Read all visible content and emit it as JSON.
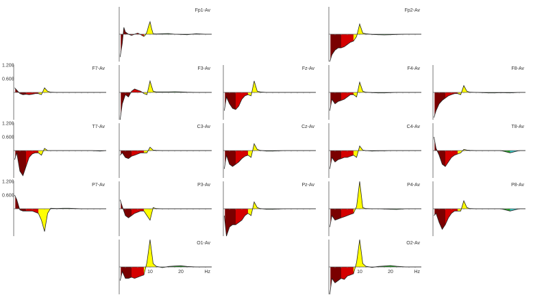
{
  "chart_data": {
    "type": "area",
    "x_unit_label": "Hz",
    "x_tick_labels": [
      "10",
      "20"
    ],
    "xlim": [
      0,
      30
    ],
    "ylim": [
      -1.2,
      1.2
    ],
    "y_tick_labels": [
      "1.200",
      "0.600"
    ],
    "band_colors": {
      "dark": "#7a0000",
      "red": "#d40000",
      "yellow": "#ffff00",
      "green": "#22aa22",
      "cyan": "#33cccc"
    },
    "bands": [
      {
        "color": "dark",
        "range": [
          0.5,
          4
        ]
      },
      {
        "color": "red",
        "range": [
          4,
          8
        ]
      },
      {
        "color": "yellow",
        "range": [
          8,
          12
        ]
      },
      {
        "color": "green",
        "range": [
          12,
          25
        ]
      },
      {
        "color": "cyan",
        "range": [
          25,
          30
        ]
      }
    ],
    "panels": [
      {
        "name": "Fp1-Av",
        "x": [
          0.3,
          1,
          1.5,
          2,
          3,
          4,
          5,
          6,
          7,
          8,
          8.5,
          9,
          9.5,
          10,
          10.5,
          11,
          12,
          14,
          16,
          18,
          20,
          22,
          25,
          28,
          30
        ],
        "y": [
          -1.0,
          -0.4,
          0.3,
          0.1,
          0,
          -0.05,
          0,
          0.05,
          -0.02,
          -0.1,
          -0.03,
          0.1,
          0.35,
          0.55,
          0.25,
          0.02,
          0.01,
          0.02,
          0.03,
          0,
          -0.01,
          -0.02,
          0.02,
          0,
          0
        ]
      },
      {
        "name": "Fp2-Av",
        "x": [
          0.3,
          1,
          2,
          3,
          4,
          5,
          6,
          7,
          8,
          9,
          10,
          11,
          12,
          14,
          16,
          18,
          20,
          22,
          25,
          28,
          30
        ],
        "y": [
          -1.2,
          -0.9,
          -0.7,
          -0.6,
          -0.6,
          -0.55,
          -0.45,
          -0.35,
          -0.3,
          -0.1,
          0.45,
          0.05,
          0.02,
          -0.01,
          -0.02,
          -0.03,
          -0.02,
          -0.01,
          0,
          0,
          0
        ]
      },
      {
        "name": "F7-Av",
        "x": [
          0.3,
          1,
          2,
          3,
          4,
          5,
          6,
          7,
          8,
          9,
          10,
          11,
          12,
          14,
          16,
          18,
          20,
          22,
          25,
          28,
          30
        ],
        "y": [
          0.2,
          0.1,
          -0.05,
          -0.1,
          -0.08,
          -0.1,
          -0.08,
          -0.05,
          -0.05,
          -0.1,
          0.2,
          0.05,
          0.01,
          0,
          0,
          0,
          0,
          0,
          0,
          0,
          0
        ]
      },
      {
        "name": "F3-Av",
        "x": [
          0.3,
          1,
          2,
          3,
          4,
          5,
          6,
          7,
          8,
          9,
          10,
          11,
          12,
          14,
          16,
          18,
          20,
          22,
          25,
          28,
          30
        ],
        "y": [
          -1.2,
          -0.5,
          -0.1,
          -0.2,
          0.05,
          0.15,
          0.1,
          0.05,
          -0.05,
          -0.1,
          0.5,
          0.05,
          0.02,
          0.02,
          0.02,
          0.03,
          0.02,
          0.01,
          0,
          0,
          0
        ]
      },
      {
        "name": "Fz-Av",
        "x": [
          0.3,
          1,
          2,
          3,
          4,
          5,
          6,
          7,
          8,
          9,
          10,
          11,
          12,
          14,
          16,
          18,
          20,
          22,
          25,
          28,
          30
        ],
        "y": [
          -0.8,
          -0.2,
          -0.5,
          -0.7,
          -0.75,
          -0.6,
          -0.3,
          -0.15,
          -0.1,
          -0.15,
          0.5,
          0.05,
          0.02,
          0,
          0,
          0,
          0,
          0,
          0,
          0,
          0
        ]
      },
      {
        "name": "F4-Av",
        "x": [
          0.3,
          1,
          2,
          3,
          4,
          5,
          6,
          7,
          8,
          9,
          10,
          11,
          12,
          14,
          16,
          18,
          20,
          22,
          25,
          28,
          30
        ],
        "y": [
          -0.8,
          -0.3,
          -0.5,
          -0.4,
          -0.35,
          -0.3,
          -0.2,
          -0.1,
          -0.1,
          -0.2,
          0.45,
          0.05,
          0.01,
          -0.01,
          -0.02,
          -0.02,
          -0.01,
          0,
          0,
          0,
          0
        ]
      },
      {
        "name": "F8-Av",
        "x": [
          0.3,
          1,
          2,
          3,
          4,
          5,
          6,
          7,
          8,
          9,
          10,
          11,
          12,
          14,
          16,
          18,
          20,
          22,
          25,
          28,
          30
        ],
        "y": [
          -1.1,
          -0.8,
          -0.5,
          -0.35,
          -0.25,
          -0.15,
          -0.1,
          -0.05,
          -0.05,
          -0.1,
          0.3,
          0.05,
          0.01,
          0,
          -0.01,
          -0.02,
          -0.02,
          -0.01,
          -0.02,
          0,
          0
        ]
      },
      {
        "name": "T7-Av",
        "x": [
          0.3,
          1,
          2,
          3,
          4,
          5,
          6,
          7,
          8,
          9,
          10,
          11,
          12,
          14,
          16,
          18,
          20,
          22,
          25,
          28,
          30
        ],
        "y": [
          -0.4,
          -0.1,
          -0.9,
          -1.1,
          -0.7,
          -0.3,
          -0.15,
          -0.1,
          -0.1,
          -0.2,
          0.1,
          0,
          0,
          0,
          0,
          0,
          0,
          0,
          0,
          -0.02,
          0
        ]
      },
      {
        "name": "C3-Av",
        "x": [
          0.3,
          1,
          2,
          3,
          4,
          5,
          6,
          7,
          8,
          9,
          10,
          11,
          12,
          14,
          16,
          18,
          20,
          22,
          25,
          28,
          30
        ],
        "y": [
          -0.2,
          -0.1,
          -0.3,
          -0.35,
          -0.25,
          -0.2,
          -0.15,
          -0.1,
          -0.1,
          -0.1,
          0.15,
          0.02,
          0.01,
          0,
          0,
          0,
          0,
          0,
          0,
          0,
          0
        ]
      },
      {
        "name": "Cz-Av",
        "x": [
          0.3,
          1,
          2,
          3,
          4,
          5,
          6,
          7,
          8,
          9,
          10,
          11,
          12,
          14,
          16,
          18,
          20,
          22,
          25,
          28,
          30
        ],
        "y": [
          -0.8,
          -0.2,
          -0.6,
          -0.7,
          -0.6,
          -0.5,
          -0.35,
          -0.25,
          -0.2,
          -0.3,
          0.3,
          0.05,
          0.01,
          -0.02,
          -0.02,
          -0.01,
          0,
          0,
          0,
          0,
          0
        ]
      },
      {
        "name": "C4-Av",
        "x": [
          0.3,
          1,
          2,
          3,
          4,
          5,
          6,
          7,
          8,
          9,
          10,
          11,
          12,
          14,
          16,
          18,
          20,
          22,
          25,
          28,
          30
        ],
        "y": [
          -0.8,
          -0.3,
          -0.5,
          -0.4,
          -0.35,
          -0.3,
          -0.3,
          -0.25,
          -0.2,
          -0.3,
          0.2,
          0.02,
          0,
          -0.02,
          -0.01,
          -0.01,
          0,
          0,
          0,
          0,
          0
        ]
      },
      {
        "name": "T8-Av",
        "x": [
          0.3,
          1,
          2,
          3,
          4,
          5,
          6,
          7,
          8,
          9,
          10,
          11,
          12,
          14,
          16,
          18,
          20,
          22,
          25,
          28,
          30
        ],
        "y": [
          0.6,
          0.1,
          -0.2,
          -0.6,
          -0.7,
          -0.5,
          -0.3,
          -0.2,
          -0.15,
          -0.1,
          0.05,
          0.02,
          0.01,
          0,
          0,
          0,
          0,
          0,
          -0.1,
          0,
          0
        ]
      },
      {
        "name": "P7-Av",
        "x": [
          0.3,
          1,
          2,
          3,
          4,
          5,
          6,
          7,
          8,
          9,
          10,
          11,
          12,
          14,
          16,
          18,
          20,
          22,
          25,
          28,
          30
        ],
        "y": [
          0.6,
          0.4,
          -0.05,
          -0.1,
          -0.1,
          -0.1,
          -0.1,
          -0.15,
          -0.2,
          -0.5,
          -1.0,
          -0.2,
          0.02,
          0.01,
          0.02,
          0.02,
          0.01,
          0,
          0,
          0,
          0
        ]
      },
      {
        "name": "P3-Av",
        "x": [
          0.3,
          1,
          2,
          3,
          4,
          5,
          6,
          7,
          8,
          9,
          10,
          11,
          12,
          14,
          16,
          18,
          20,
          22,
          25,
          28,
          30
        ],
        "y": [
          0.4,
          0.1,
          -0.3,
          -0.4,
          -0.3,
          -0.2,
          -0.15,
          -0.1,
          -0.1,
          -0.3,
          -0.5,
          0.05,
          0.01,
          0,
          0,
          0,
          0,
          0,
          0,
          0,
          0
        ]
      },
      {
        "name": "Pz-Av",
        "x": [
          0.3,
          1,
          2,
          3,
          4,
          5,
          6,
          7,
          8,
          9,
          10,
          11,
          12,
          14,
          16,
          18,
          20,
          22,
          25,
          28,
          30
        ],
        "y": [
          -0.3,
          -1.2,
          -0.8,
          -0.7,
          -0.7,
          -0.6,
          -0.5,
          -0.3,
          -0.2,
          -0.3,
          0.3,
          0.05,
          0.01,
          -0.02,
          -0.02,
          -0.01,
          0,
          0,
          0,
          0,
          0
        ]
      },
      {
        "name": "P4-Av",
        "x": [
          0.3,
          1,
          2,
          3,
          4,
          5,
          6,
          7,
          8,
          9,
          10,
          11,
          12,
          14,
          16,
          18,
          20,
          22,
          25,
          28,
          30
        ],
        "y": [
          -0.8,
          -0.3,
          -0.5,
          -0.45,
          -0.4,
          -0.35,
          -0.3,
          -0.25,
          -0.2,
          0.1,
          1.2,
          0.05,
          0.01,
          0,
          0,
          -0.01,
          -0.02,
          -0.03,
          0,
          0,
          0
        ]
      },
      {
        "name": "P8-Av",
        "x": [
          0.3,
          1,
          2,
          3,
          4,
          5,
          6,
          7,
          8,
          9,
          10,
          11,
          12,
          14,
          16,
          18,
          20,
          22,
          25,
          28,
          30
        ],
        "y": [
          -0.3,
          -0.2,
          -0.6,
          -0.9,
          -0.7,
          -0.4,
          -0.2,
          -0.1,
          -0.1,
          -0.1,
          0.35,
          0.05,
          0.01,
          0,
          0,
          0,
          0,
          0,
          -0.1,
          0,
          0
        ]
      },
      {
        "name": "O1-Av",
        "x": [
          0.3,
          1,
          2,
          3,
          4,
          5,
          6,
          7,
          8,
          9,
          10,
          11,
          12,
          14,
          16,
          18,
          20,
          22,
          25,
          28,
          30
        ],
        "y": [
          -0.6,
          -0.2,
          -0.5,
          -0.5,
          -0.45,
          -0.5,
          -0.45,
          -0.4,
          -0.35,
          0.2,
          1.2,
          0.15,
          0.03,
          -0.03,
          0.02,
          0.04,
          0.05,
          0.02,
          0,
          0,
          0
        ]
      },
      {
        "name": "O2-Av",
        "x": [
          0.3,
          1,
          2,
          3,
          4,
          5,
          6,
          7,
          8,
          9,
          10,
          11,
          12,
          14,
          16,
          18,
          20,
          22,
          25,
          28,
          30
        ],
        "y": [
          -1.2,
          -0.5,
          -0.7,
          -0.6,
          -0.5,
          -0.55,
          -0.4,
          -0.35,
          -0.3,
          0.2,
          1.2,
          0.15,
          0.03,
          -0.02,
          0.02,
          0.04,
          0.06,
          0.03,
          0,
          0,
          0
        ]
      }
    ]
  }
}
